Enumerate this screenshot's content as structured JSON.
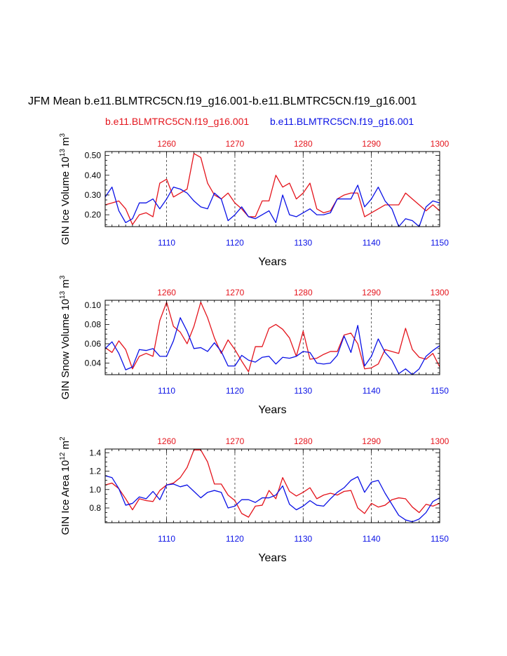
{
  "figure": {
    "title": "JFM Mean b.e11.BLMTRC5CN.f19_g16.001-b.e11.BLMTRC5CN.f19_g16.001",
    "legend_case": "b.e11.BLMTRC5CN.f19_g16.001",
    "legend_cntl": "b.e11.BLMTRC5CN.f19_g16.001",
    "colors": {
      "case": "#e4141c",
      "cntl": "#0b12e6",
      "axis": "#000000",
      "grid": "#333333"
    }
  },
  "chart_data": [
    {
      "type": "line",
      "ylabel_main": "GIN Ice Volume 10",
      "ylabel_exp": "13",
      "ylabel_unit": " m",
      "ylabel_unit_exp": "3",
      "xlabel": "Years",
      "ylim": [
        0.14,
        0.52
      ],
      "yticks": [
        0.2,
        0.3,
        0.4,
        0.5
      ],
      "ytick_labels": [
        "0.20",
        "0.30",
        "0.40",
        "0.50"
      ],
      "bottom_x": [
        1101,
        1102,
        1103,
        1104,
        1105,
        1106,
        1107,
        1108,
        1109,
        1110,
        1111,
        1112,
        1113,
        1114,
        1115,
        1116,
        1117,
        1118,
        1119,
        1120,
        1121,
        1122,
        1123,
        1124,
        1125,
        1126,
        1127,
        1128,
        1129,
        1130,
        1131,
        1132,
        1133,
        1134,
        1135,
        1136,
        1137,
        1138,
        1139,
        1140,
        1141,
        1142,
        1143,
        1144,
        1145,
        1146,
        1147,
        1148,
        1149,
        1150
      ],
      "bottom_ticks": [
        1110,
        1120,
        1130,
        1140,
        1150
      ],
      "bottom_tick_labels": [
        "1110",
        "1120",
        "1130",
        "1140",
        "1150"
      ],
      "top_ticks": [
        1260,
        1270,
        1280,
        1290,
        1300
      ],
      "top_tick_labels": [
        "1260",
        "1270",
        "1280",
        "1290",
        "1300"
      ],
      "top_offset": 150,
      "series": [
        {
          "name": "b.e11.BLMTRC5CN.f19_g16.001 (top axis)",
          "color": "#e4141c",
          "values": [
            0.25,
            0.26,
            0.27,
            0.23,
            0.15,
            0.2,
            0.21,
            0.19,
            0.36,
            0.38,
            0.29,
            0.31,
            0.33,
            0.51,
            0.49,
            0.36,
            0.3,
            0.28,
            0.31,
            0.26,
            0.23,
            0.19,
            0.19,
            0.27,
            0.27,
            0.4,
            0.34,
            0.36,
            0.28,
            0.31,
            0.36,
            0.23,
            0.21,
            0.22,
            0.28,
            0.3,
            0.31,
            0.31,
            0.19,
            0.21,
            0.23,
            0.25,
            0.25,
            0.25,
            0.31,
            0.28,
            0.25,
            0.22,
            0.25,
            0.22
          ]
        },
        {
          "name": "b.e11.BLMTRC5CN.f19_g16.001 (bottom axis)",
          "color": "#0b12e6",
          "values": [
            0.29,
            0.34,
            0.22,
            0.16,
            0.18,
            0.26,
            0.26,
            0.28,
            0.23,
            0.28,
            0.34,
            0.33,
            0.31,
            0.27,
            0.24,
            0.23,
            0.31,
            0.28,
            0.17,
            0.2,
            0.24,
            0.19,
            0.18,
            0.2,
            0.22,
            0.16,
            0.3,
            0.2,
            0.19,
            0.21,
            0.23,
            0.2,
            0.2,
            0.21,
            0.28,
            0.28,
            0.28,
            0.35,
            0.24,
            0.28,
            0.34,
            0.27,
            0.23,
            0.14,
            0.18,
            0.17,
            0.14,
            0.24,
            0.27,
            0.26
          ]
        }
      ]
    },
    {
      "type": "line",
      "ylabel_main": "GIN Snow Volume 10",
      "ylabel_exp": "13",
      "ylabel_unit": " m",
      "ylabel_unit_exp": "3",
      "xlabel": "Years",
      "ylim": [
        0.028,
        0.105
      ],
      "yticks": [
        0.04,
        0.06,
        0.08,
        0.1
      ],
      "ytick_labels": [
        "0.04",
        "0.06",
        "0.08",
        "0.10"
      ],
      "bottom_x": [
        1101,
        1102,
        1103,
        1104,
        1105,
        1106,
        1107,
        1108,
        1109,
        1110,
        1111,
        1112,
        1113,
        1114,
        1115,
        1116,
        1117,
        1118,
        1119,
        1120,
        1121,
        1122,
        1123,
        1124,
        1125,
        1126,
        1127,
        1128,
        1129,
        1130,
        1131,
        1132,
        1133,
        1134,
        1135,
        1136,
        1137,
        1138,
        1139,
        1140,
        1141,
        1142,
        1143,
        1144,
        1145,
        1146,
        1147,
        1148,
        1149,
        1150
      ],
      "bottom_ticks": [
        1110,
        1120,
        1130,
        1140,
        1150
      ],
      "bottom_tick_labels": [
        "1110",
        "1120",
        "1130",
        "1140",
        "1150"
      ],
      "top_ticks": [
        1260,
        1270,
        1280,
        1290,
        1300
      ],
      "top_tick_labels": [
        "1260",
        "1270",
        "1280",
        "1290",
        "1300"
      ],
      "top_offset": 150,
      "series": [
        {
          "name": "b.e11.BLMTRC5CN.f19_g16.001 (top axis)",
          "color": "#e4141c",
          "values": [
            0.056,
            0.051,
            0.063,
            0.054,
            0.034,
            0.047,
            0.05,
            0.047,
            0.084,
            0.103,
            0.078,
            0.072,
            0.06,
            0.078,
            0.103,
            0.087,
            0.066,
            0.05,
            0.064,
            0.054,
            0.042,
            0.031,
            0.057,
            0.057,
            0.076,
            0.08,
            0.075,
            0.066,
            0.047,
            0.073,
            0.044,
            0.045,
            0.049,
            0.052,
            0.052,
            0.069,
            0.071,
            0.06,
            0.034,
            0.035,
            0.039,
            0.054,
            0.052,
            0.05,
            0.076,
            0.054,
            0.046,
            0.044,
            0.05,
            0.036
          ]
        },
        {
          "name": "b.e11.BLMTRC5CN.f19_g16.001 (bottom axis)",
          "color": "#0b12e6",
          "values": [
            0.055,
            0.062,
            0.05,
            0.033,
            0.036,
            0.054,
            0.053,
            0.055,
            0.047,
            0.047,
            0.063,
            0.087,
            0.073,
            0.055,
            0.056,
            0.052,
            0.061,
            0.052,
            0.037,
            0.037,
            0.048,
            0.043,
            0.041,
            0.046,
            0.047,
            0.039,
            0.046,
            0.045,
            0.047,
            0.052,
            0.051,
            0.04,
            0.039,
            0.04,
            0.048,
            0.068,
            0.051,
            0.079,
            0.037,
            0.047,
            0.065,
            0.051,
            0.043,
            0.029,
            0.034,
            0.028,
            0.034,
            0.047,
            0.053,
            0.058
          ]
        }
      ]
    },
    {
      "type": "line",
      "ylabel_main": "GIN Ice Area 10",
      "ylabel_exp": "12",
      "ylabel_unit": " m",
      "ylabel_unit_exp": "2",
      "xlabel": "Years",
      "ylim": [
        0.64,
        1.44
      ],
      "yticks": [
        0.8,
        1.0,
        1.2,
        1.4
      ],
      "ytick_labels": [
        "0.8",
        "1.0",
        "1.2",
        "1.4"
      ],
      "bottom_x": [
        1101,
        1102,
        1103,
        1104,
        1105,
        1106,
        1107,
        1108,
        1109,
        1110,
        1111,
        1112,
        1113,
        1114,
        1115,
        1116,
        1117,
        1118,
        1119,
        1120,
        1121,
        1122,
        1123,
        1124,
        1125,
        1126,
        1127,
        1128,
        1129,
        1130,
        1131,
        1132,
        1133,
        1134,
        1135,
        1136,
        1137,
        1138,
        1139,
        1140,
        1141,
        1142,
        1143,
        1144,
        1145,
        1146,
        1147,
        1148,
        1149,
        1150
      ],
      "bottom_ticks": [
        1110,
        1120,
        1130,
        1140,
        1150
      ],
      "bottom_tick_labels": [
        "1110",
        "1120",
        "1130",
        "1140",
        "1150"
      ],
      "top_ticks": [
        1260,
        1270,
        1280,
        1290,
        1300
      ],
      "top_tick_labels": [
        "1260",
        "1270",
        "1280",
        "1290",
        "1300"
      ],
      "top_offset": 150,
      "series": [
        {
          "name": "b.e11.BLMTRC5CN.f19_g16.001 (top axis)",
          "color": "#e4141c",
          "values": [
            1.05,
            1.07,
            1.01,
            0.9,
            0.78,
            0.9,
            0.88,
            0.87,
            0.99,
            1.05,
            1.07,
            1.13,
            1.24,
            1.43,
            1.43,
            1.3,
            1.06,
            1.06,
            0.94,
            0.88,
            0.74,
            0.7,
            0.82,
            0.83,
            0.99,
            0.9,
            1.13,
            0.98,
            0.93,
            0.97,
            1.02,
            0.9,
            0.94,
            0.96,
            0.94,
            0.98,
            0.99,
            0.8,
            0.74,
            0.85,
            0.81,
            0.83,
            0.89,
            0.91,
            0.9,
            0.81,
            0.75,
            0.84,
            0.82,
            0.85
          ]
        },
        {
          "name": "b.e11.BLMTRC5CN.f19_g16.001 (bottom axis)",
          "color": "#0b12e6",
          "values": [
            1.15,
            1.13,
            1.01,
            0.83,
            0.85,
            0.92,
            0.9,
            0.98,
            0.89,
            1.05,
            1.06,
            1.03,
            1.05,
            0.98,
            0.91,
            0.97,
            0.99,
            0.97,
            0.8,
            0.82,
            0.89,
            0.89,
            0.86,
            0.91,
            0.91,
            0.94,
            1.04,
            0.84,
            0.78,
            0.82,
            0.88,
            0.83,
            0.82,
            0.9,
            0.97,
            1.02,
            1.1,
            1.14,
            0.97,
            1.08,
            1.1,
            0.96,
            0.84,
            0.72,
            0.67,
            0.65,
            0.68,
            0.75,
            0.87,
            0.91
          ]
        }
      ]
    }
  ]
}
